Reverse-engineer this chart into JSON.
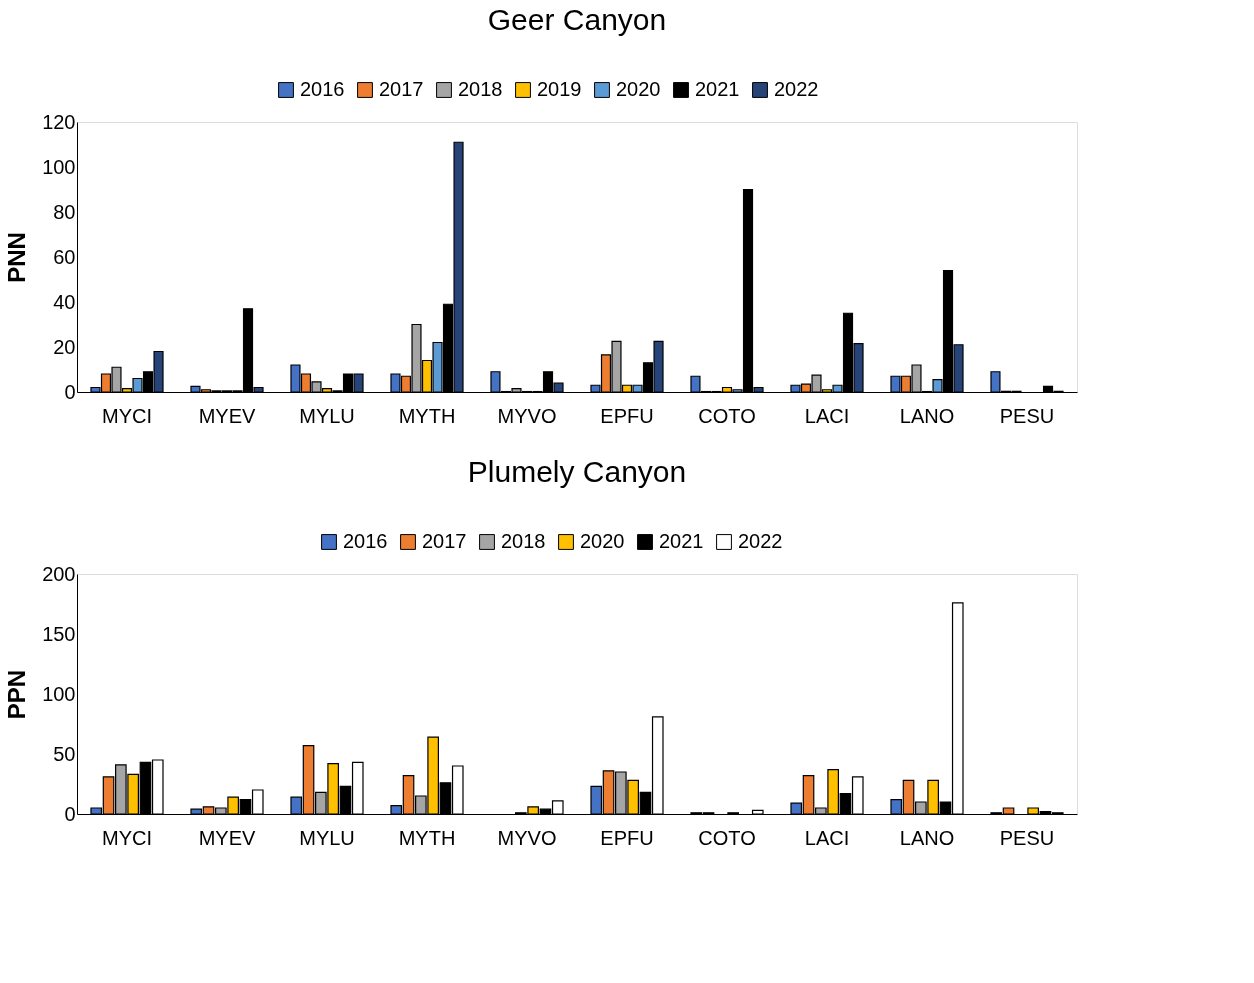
{
  "chart_data": [
    {
      "type": "bar",
      "title": "Geer Canyon",
      "ylabel": "PNN",
      "categories": [
        "MYCI",
        "MYEV",
        "MYLU",
        "MYTH",
        "MYVO",
        "EPFU",
        "COTO",
        "LACI",
        "LANO",
        "PESU"
      ],
      "ylim": [
        0,
        120
      ],
      "yticks": [
        0,
        20,
        40,
        60,
        80,
        100,
        120
      ],
      "grid": false,
      "legend": "top",
      "series": [
        {
          "name": "2016",
          "color": "#4472c4",
          "values": [
            2,
            2.5,
            12,
            8,
            9,
            3,
            7,
            3,
            7,
            9
          ]
        },
        {
          "name": "2017",
          "color": "#ed7d31",
          "values": [
            8,
            1,
            8,
            7,
            0.2,
            16.5,
            0.2,
            3.5,
            7,
            0.3
          ]
        },
        {
          "name": "2018",
          "color": "#a5a5a5",
          "values": [
            11,
            0.5,
            4.5,
            30,
            1.5,
            22.5,
            0.2,
            7.5,
            12,
            0.3
          ]
        },
        {
          "name": "2019",
          "color": "#ffc000",
          "values": [
            1.5,
            0.5,
            1.5,
            14,
            0.2,
            3,
            2,
            1,
            0.2,
            0
          ]
        },
        {
          "name": "2020",
          "color": "#5b9bd5",
          "values": [
            6,
            0.5,
            0.5,
            22,
            0.2,
            3,
            1,
            3,
            5.5,
            0
          ]
        },
        {
          "name": "2021",
          "color": "#000000",
          "values": [
            9,
            37,
            8,
            39,
            9,
            13,
            90,
            35,
            54,
            2.5
          ]
        },
        {
          "name": "2022",
          "color": "#264478",
          "values": [
            18,
            2,
            8,
            111,
            4,
            22.5,
            2,
            21.5,
            21,
            0.3
          ]
        }
      ]
    },
    {
      "type": "bar",
      "title": "Plumely Canyon",
      "ylabel": "PPN",
      "categories": [
        "MYCI",
        "MYEV",
        "MYLU",
        "MYTH",
        "MYVO",
        "EPFU",
        "COTO",
        "LACI",
        "LANO",
        "PESU"
      ],
      "ylim": [
        0,
        200
      ],
      "yticks": [
        0,
        50,
        100,
        150,
        200
      ],
      "grid": false,
      "legend": "top",
      "series": [
        {
          "name": "2016",
          "color": "#4472c4",
          "values": [
            5,
            4,
            14,
            7,
            0,
            23,
            1,
            9,
            12,
            1
          ]
        },
        {
          "name": "2017",
          "color": "#ed7d31",
          "values": [
            31,
            6,
            57,
            32,
            0,
            36,
            1,
            32,
            28,
            5
          ]
        },
        {
          "name": "2018",
          "color": "#a5a5a5",
          "values": [
            41,
            5,
            18,
            15,
            1,
            35,
            0,
            5,
            10,
            0
          ]
        },
        {
          "name": "2020",
          "color": "#ffc000",
          "values": [
            33,
            14,
            42,
            64,
            6,
            28,
            1,
            37,
            28,
            5
          ]
        },
        {
          "name": "2021",
          "color": "#000000",
          "values": [
            43,
            12,
            23,
            26,
            4,
            18,
            0,
            17,
            10,
            2
          ]
        },
        {
          "name": "2022",
          "color": "#ffffff",
          "values": [
            45,
            20,
            43,
            40,
            11,
            81,
            3,
            31,
            176,
            1
          ]
        }
      ]
    }
  ]
}
